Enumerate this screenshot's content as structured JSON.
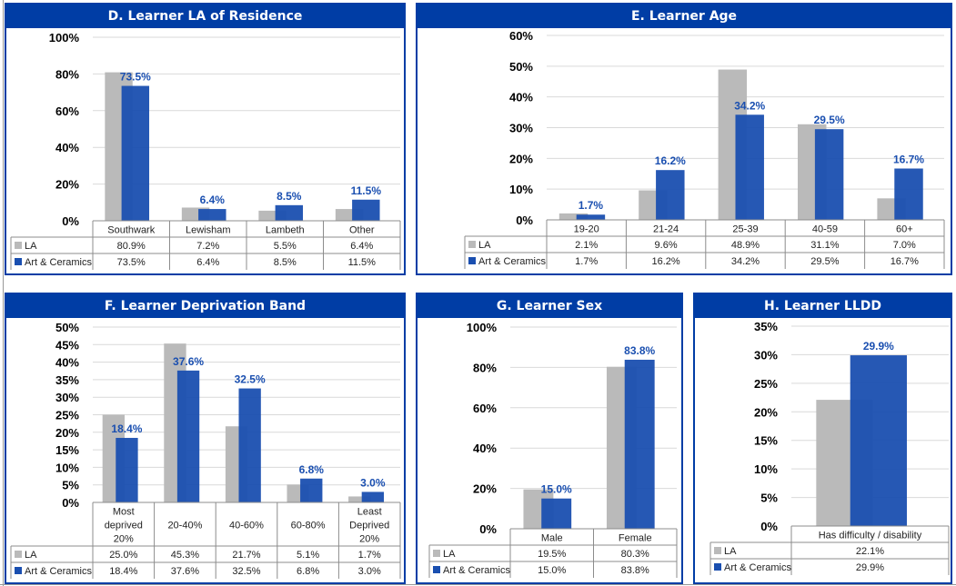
{
  "colors": {
    "la": "#bababa",
    "course": "#1a4fb0",
    "header": "#003da5",
    "label": "#1a4fb0",
    "grid": "#d9d9d9",
    "table": "#8c8c8c"
  },
  "legend": {
    "la": "LA",
    "course": "Art & Ceramics"
  },
  "chart_data": [
    {
      "id": "D",
      "type": "bar",
      "title": "D. Learner LA of Residence",
      "categories": [
        "Southwark",
        "Lewisham",
        "Lambeth",
        "Other"
      ],
      "series": [
        {
          "name": "LA",
          "values": [
            80.9,
            7.2,
            5.5,
            6.4
          ],
          "labels": [
            "80.9%",
            "7.2%",
            "5.5%",
            "6.4%"
          ]
        },
        {
          "name": "Art & Ceramics",
          "values": [
            73.5,
            6.4,
            8.5,
            11.5
          ],
          "labels": [
            "73.5%",
            "6.4%",
            "8.5%",
            "11.5%"
          ]
        }
      ],
      "yticks": [
        "0%",
        "20%",
        "40%",
        "60%",
        "80%",
        "100%"
      ],
      "ylim": [
        0,
        100
      ],
      "ystep": 20,
      "data_labels": "Art & Ceramics series only",
      "data_table": true
    },
    {
      "id": "E",
      "type": "bar",
      "title": "E. Learner Age",
      "categories": [
        "19-20",
        "21-24",
        "25-39",
        "40-59",
        "60+"
      ],
      "series": [
        {
          "name": "LA",
          "values": [
            2.1,
            9.6,
            48.9,
            31.1,
            7.0
          ],
          "labels": [
            "2.1%",
            "9.6%",
            "48.9%",
            "31.1%",
            "7.0%"
          ]
        },
        {
          "name": "Art & Ceramics",
          "values": [
            1.7,
            16.2,
            34.2,
            29.5,
            16.7
          ],
          "labels": [
            "1.7%",
            "16.2%",
            "34.2%",
            "29.5%",
            "16.7%"
          ]
        }
      ],
      "yticks": [
        "0%",
        "10%",
        "20%",
        "30%",
        "40%",
        "50%",
        "60%"
      ],
      "ylim": [
        0,
        60
      ],
      "ystep": 10,
      "data_labels": "Art & Ceramics series only",
      "data_table": true
    },
    {
      "id": "F",
      "type": "bar",
      "title": "F. Learner Deprivation Band",
      "categories": [
        [
          "Most",
          "deprived",
          "20%"
        ],
        [
          "20-40%"
        ],
        [
          "40-60%"
        ],
        [
          "60-80%"
        ],
        [
          "Least",
          "Deprived",
          "20%"
        ]
      ],
      "series": [
        {
          "name": "LA",
          "values": [
            25.0,
            45.3,
            21.7,
            5.1,
            1.7
          ],
          "labels": [
            "25.0%",
            "45.3%",
            "21.7%",
            "5.1%",
            "1.7%"
          ]
        },
        {
          "name": "Art & Ceramics",
          "values": [
            18.4,
            37.6,
            32.5,
            6.8,
            3.0
          ],
          "labels": [
            "18.4%",
            "37.6%",
            "32.5%",
            "6.8%",
            "3.0%"
          ]
        }
      ],
      "yticks": [
        "0%",
        "5%",
        "10%",
        "15%",
        "20%",
        "25%",
        "30%",
        "35%",
        "40%",
        "45%",
        "50%"
      ],
      "ylim": [
        0,
        50
      ],
      "ystep": 5,
      "data_labels": "Art & Ceramics series only",
      "data_table": true
    },
    {
      "id": "G",
      "type": "bar",
      "title": "G. Learner Sex",
      "categories": [
        "Male",
        "Female"
      ],
      "series": [
        {
          "name": "LA",
          "values": [
            19.5,
            80.3
          ],
          "labels": [
            "19.5%",
            "80.3%"
          ]
        },
        {
          "name": "Art & Ceramics",
          "values": [
            15.0,
            83.8
          ],
          "labels": [
            "15.0%",
            "83.8%"
          ]
        }
      ],
      "yticks": [
        "0%",
        "20%",
        "40%",
        "60%",
        "80%",
        "100%"
      ],
      "ylim": [
        0,
        100
      ],
      "ystep": 20,
      "data_labels": "Art & Ceramics series only",
      "data_table": true
    },
    {
      "id": "H",
      "type": "bar",
      "title": "H. Learner LLDD",
      "categories": [
        "Has difficulty / disability"
      ],
      "series": [
        {
          "name": "LA",
          "values": [
            22.1
          ],
          "labels": [
            "22.1%"
          ]
        },
        {
          "name": "Art & Ceramics",
          "values": [
            29.9
          ],
          "labels": [
            "29.9%"
          ]
        }
      ],
      "yticks": [
        "0%",
        "5%",
        "10%",
        "15%",
        "20%",
        "25%",
        "30%",
        "35%"
      ],
      "ylim": [
        0,
        35
      ],
      "ystep": 5,
      "data_labels": "Art & Ceramics series only",
      "data_table": true
    }
  ]
}
